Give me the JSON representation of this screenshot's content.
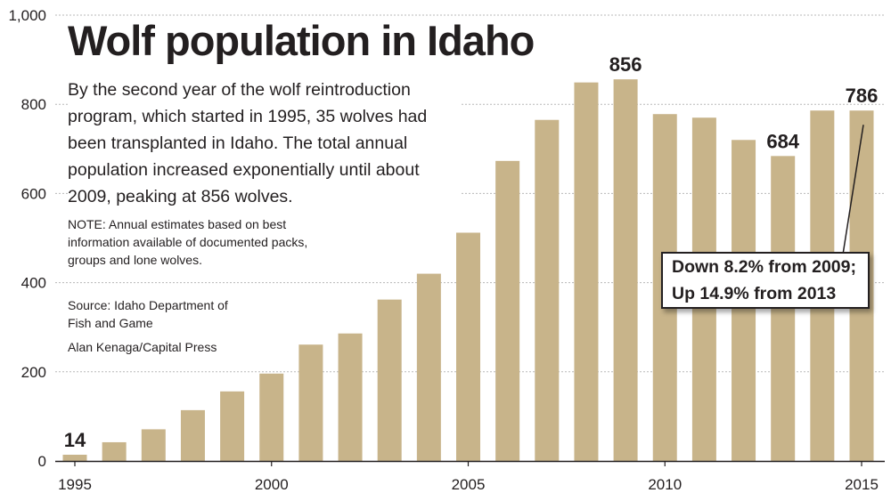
{
  "chart_data": {
    "type": "bar",
    "title": "Wolf population in Idaho",
    "description": "By the second year of the wolf reintroduction program, which started in 1995, 35 wolves had been transplanted in Idaho. The total annual population increased exponentially until about 2009, peaking at 856 wolves.",
    "note": "NOTE: Annual estimates based on best information available of documented packs, groups and lone wolves.",
    "source": "Source: Idaho Department of Fish and Game",
    "credit": "Alan Kenaga/Capital Press",
    "callout": [
      "Down 8.2% from 2009;",
      "Up 14.9% from 2013"
    ],
    "categories": [
      "1995",
      "1996",
      "1997",
      "1998",
      "1999",
      "2000",
      "2001",
      "2002",
      "2003",
      "2004",
      "2005",
      "2006",
      "2007",
      "2008",
      "2009",
      "2010",
      "2011",
      "2012",
      "2013",
      "2014",
      "2015"
    ],
    "values": [
      14,
      42,
      71,
      114,
      156,
      196,
      261,
      286,
      362,
      420,
      512,
      673,
      765,
      849,
      856,
      778,
      770,
      720,
      684,
      786,
      786
    ],
    "x_tick_labels": [
      "1995",
      "2000",
      "2005",
      "2010",
      "2015"
    ],
    "y_tick_labels": [
      "0",
      "200",
      "400",
      "600",
      "800",
      "1,000"
    ],
    "ylim": [
      0,
      1000
    ],
    "grid": true,
    "data_labels": [
      {
        "category": "1995",
        "text": "14"
      },
      {
        "category": "2009",
        "text": "856"
      },
      {
        "category": "2013",
        "text": "684"
      },
      {
        "category": "2015",
        "text": "786"
      }
    ],
    "bar_color": "#c8b48a",
    "text_color": "#231f20"
  }
}
